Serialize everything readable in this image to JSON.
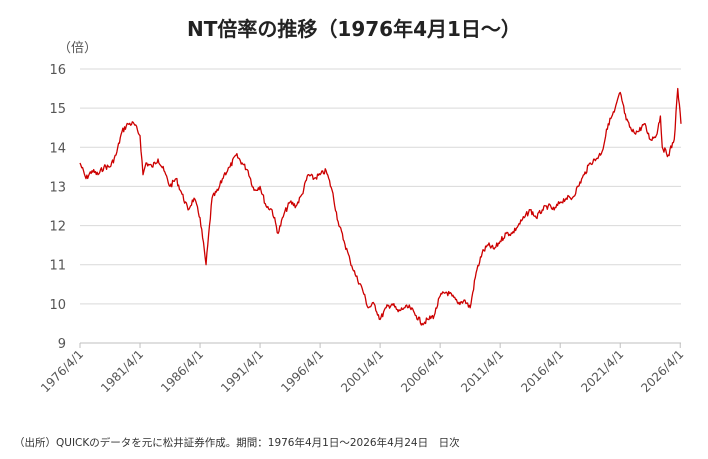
{
  "chart_data": {
    "type": "line",
    "title": "NT倍率の推移（1976年4月1日〜）",
    "y_unit": "（倍）",
    "source": "（出所）QUICKのデータを元に松井証券作成。期間：1976年4月1日〜2026年4月24日　日次",
    "ylim": [
      9,
      16
    ],
    "yticks": [
      "9",
      "10",
      "11",
      "12",
      "13",
      "14",
      "15",
      "16"
    ],
    "xlim": [
      "1976-04-01",
      "2026-04-24"
    ],
    "xticks": [
      "1976/4/1",
      "1981/4/1",
      "1986/4/1",
      "1991/4/1",
      "1996/4/1",
      "2001/4/1",
      "2006/4/1",
      "2011/4/1",
      "2016/4/1",
      "2021/4/1",
      "2026/4/1"
    ],
    "grid": true,
    "line_color": "#cc0000",
    "series": [
      {
        "x": [
          "1976-04-01",
          "1976-10-01",
          "1977-04-01",
          "1977-10-01",
          "1978-04-01",
          "1978-10-01",
          "1979-04-01",
          "1979-10-01",
          "1980-04-01",
          "1980-10-01",
          "1981-04-01",
          "1981-07-01",
          "1981-10-01",
          "1982-04-01",
          "1982-10-01",
          "1983-04-01",
          "1983-10-01",
          "1984-04-01",
          "1984-10-01",
          "1985-04-01",
          "1985-10-01",
          "1986-04-01",
          "1986-10-01",
          "1987-04-01",
          "1987-10-01",
          "1988-04-01",
          "1988-10-01",
          "1989-04-01",
          "1989-10-01",
          "1990-04-01",
          "1990-10-01",
          "1991-04-01",
          "1991-10-01",
          "1992-04-01",
          "1992-10-01",
          "1993-04-01",
          "1993-10-01",
          "1994-04-01",
          "1994-10-01",
          "1995-04-01",
          "1995-10-01",
          "1996-04-01",
          "1996-10-01",
          "1997-04-01",
          "1997-10-01",
          "1998-04-01",
          "1998-10-01",
          "1999-04-01",
          "1999-10-01",
          "2000-04-01",
          "2000-10-01",
          "2001-04-01",
          "2001-10-01",
          "2002-04-01",
          "2002-10-01",
          "2003-04-01",
          "2003-10-01",
          "2004-04-01",
          "2004-10-01",
          "2005-04-01",
          "2005-10-01",
          "2006-04-01",
          "2006-10-01",
          "2007-04-01",
          "2007-10-01",
          "2008-04-01",
          "2008-10-01",
          "2009-04-01",
          "2009-10-01",
          "2010-04-01",
          "2010-10-01",
          "2011-04-01",
          "2011-10-01",
          "2012-04-01",
          "2012-10-01",
          "2013-04-01",
          "2013-10-01",
          "2014-04-01",
          "2014-10-01",
          "2015-04-01",
          "2015-10-01",
          "2016-04-01",
          "2016-10-01",
          "2017-04-01",
          "2017-10-01",
          "2018-04-01",
          "2018-10-01",
          "2019-04-01",
          "2019-10-01",
          "2020-04-01",
          "2020-10-01",
          "2021-04-01",
          "2021-10-01",
          "2022-04-01",
          "2022-10-01",
          "2023-04-01",
          "2023-10-01",
          "2024-04-01",
          "2024-08-05",
          "2024-10-01",
          "2025-04-01",
          "2025-10-01",
          "2026-01-15",
          "2026-04-24"
        ],
        "y": [
          13.6,
          13.2,
          13.4,
          13.3,
          13.5,
          13.5,
          13.8,
          14.4,
          14.6,
          14.6,
          14.3,
          13.3,
          13.6,
          13.5,
          13.7,
          13.4,
          13.0,
          13.2,
          12.8,
          12.4,
          12.7,
          12.2,
          11.0,
          12.7,
          12.9,
          13.3,
          13.5,
          13.8,
          13.6,
          13.4,
          12.9,
          13.0,
          12.5,
          12.4,
          11.8,
          12.3,
          12.6,
          12.5,
          12.8,
          13.3,
          13.2,
          13.3,
          13.4,
          12.9,
          12.1,
          11.6,
          11.1,
          10.7,
          10.4,
          9.9,
          10.0,
          9.6,
          9.9,
          10.0,
          9.8,
          9.9,
          9.9,
          9.7,
          9.5,
          9.6,
          9.7,
          10.2,
          10.3,
          10.2,
          10.0,
          10.1,
          9.9,
          10.8,
          11.3,
          11.5,
          11.4,
          11.6,
          11.8,
          11.8,
          12.0,
          12.2,
          12.4,
          12.2,
          12.4,
          12.5,
          12.4,
          12.6,
          12.7,
          12.7,
          13.0,
          13.3,
          13.6,
          13.7,
          13.9,
          14.6,
          14.9,
          15.4,
          14.7,
          14.4,
          14.4,
          14.6,
          14.2,
          14.3,
          14.8,
          14.0,
          13.8,
          14.2,
          15.5,
          14.6
        ]
      }
    ]
  }
}
